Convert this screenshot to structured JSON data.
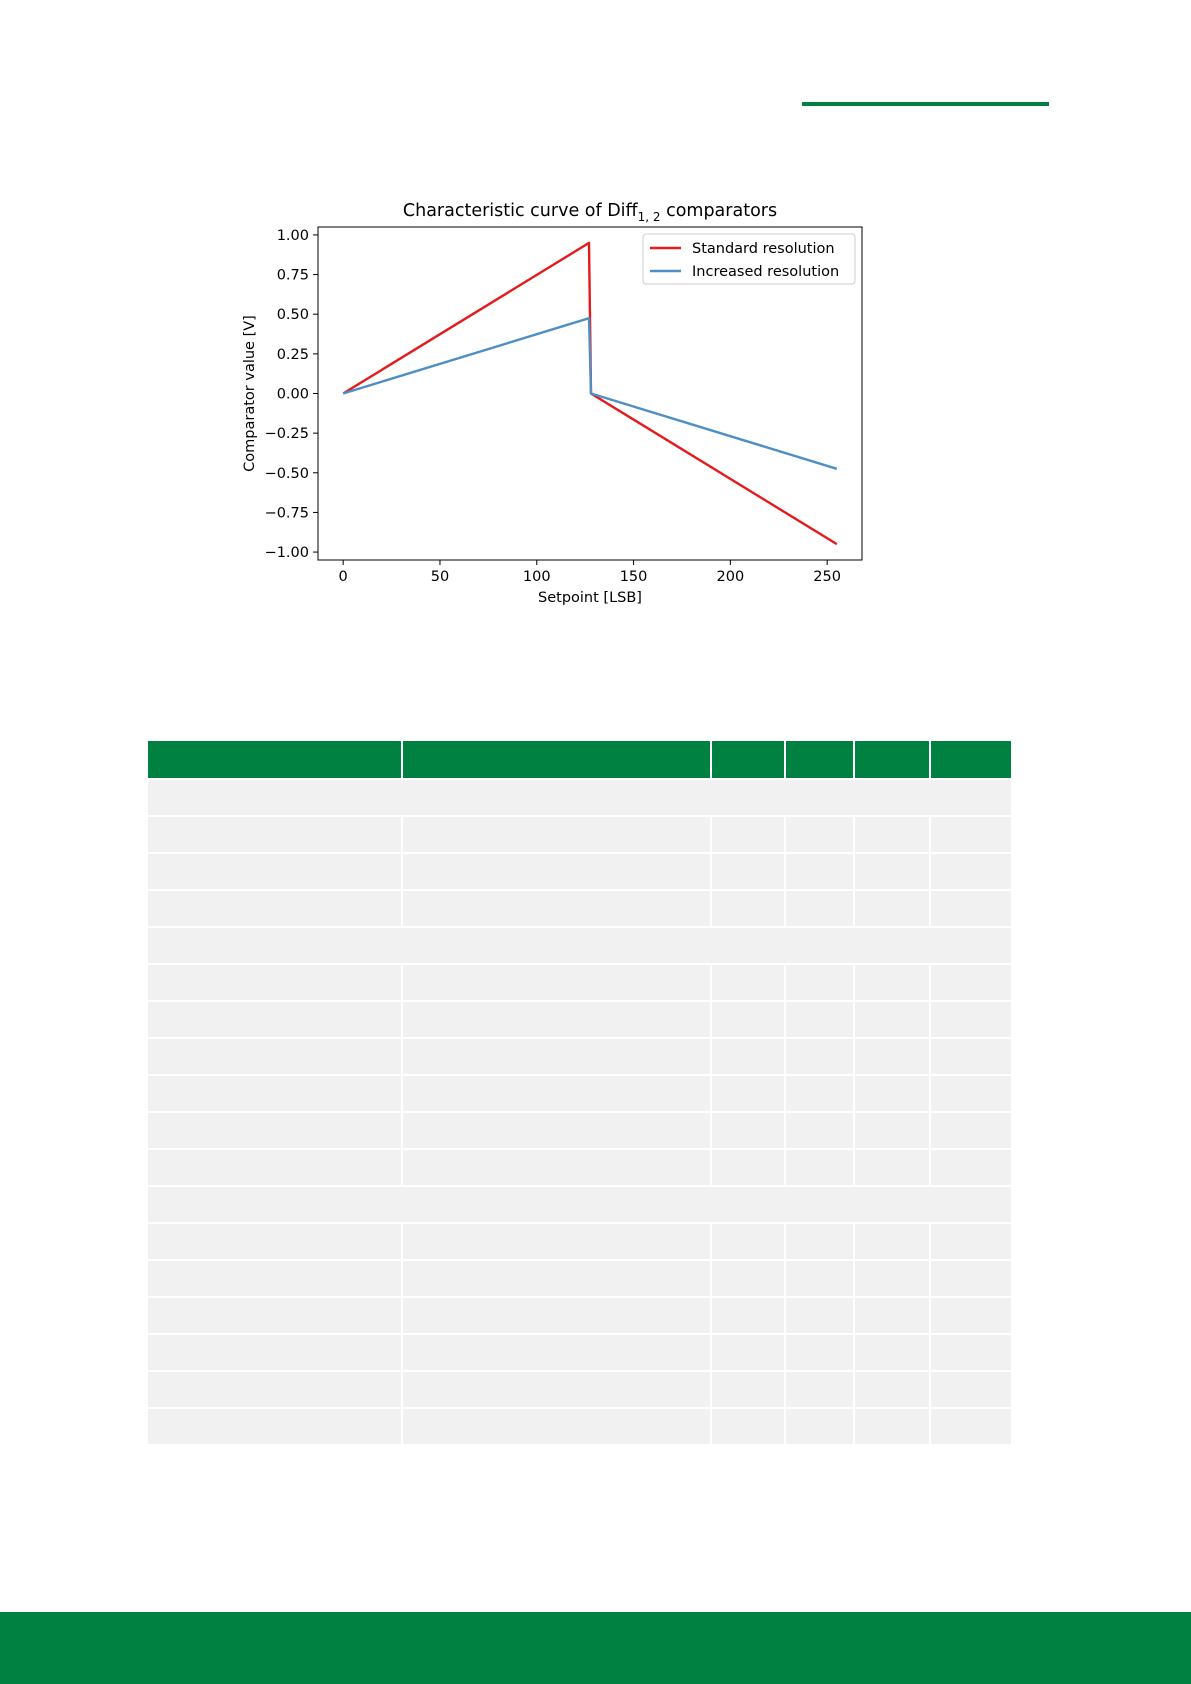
{
  "colors": {
    "accent": "#008142",
    "table_cell": "#f1f1f1",
    "standard_resolution": "#e41a1c",
    "increased_resolution": "#4f8fc3"
  },
  "chart_data": {
    "type": "line",
    "title": "Characteristic curve of Diff",
    "title_subscript": "1, 2",
    "title_suffix": " comparators",
    "xlabel": "Setpoint [LSB]",
    "ylabel": "Comparator value [V]",
    "xlim": [
      -13,
      268
    ],
    "ylim": [
      -1.05,
      1.05
    ],
    "xticks": [
      0,
      50,
      100,
      150,
      200,
      250
    ],
    "xtick_labels": [
      "0",
      "50",
      "100",
      "150",
      "200",
      "250"
    ],
    "yticks": [
      1.0,
      0.75,
      0.5,
      0.25,
      0.0,
      -0.25,
      -0.5,
      -0.75,
      -1.0
    ],
    "ytick_labels": [
      "1.00",
      "0.75",
      "0.50",
      "0.25",
      "0.00",
      "−0.25",
      "−0.50",
      "−0.75",
      "−1.00"
    ],
    "legend_position": "top-right",
    "grid": false,
    "series": [
      {
        "name": "Standard resolution",
        "x": [
          0,
          127,
          128,
          255
        ],
        "y": [
          0.0,
          0.95,
          0.0,
          -0.95
        ]
      },
      {
        "name": "Increased resolution",
        "x": [
          0,
          127,
          128,
          255
        ],
        "y": [
          0.0,
          0.475,
          0.0,
          -0.475
        ]
      }
    ]
  },
  "table": {
    "columns": 6,
    "rows": [
      "section",
      "row",
      "row",
      "row",
      "section",
      "row",
      "row",
      "row",
      "row",
      "row",
      "row",
      "section",
      "row",
      "row",
      "row",
      "row",
      "row",
      "row"
    ]
  }
}
